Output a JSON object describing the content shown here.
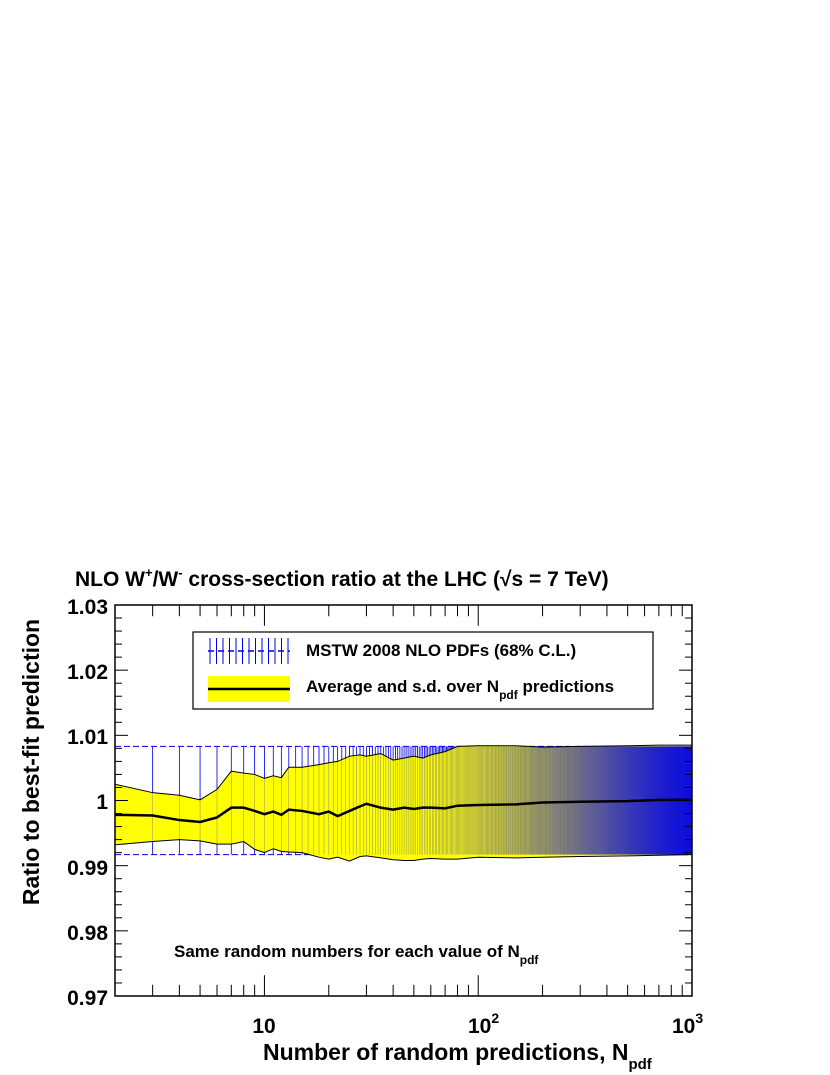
{
  "colors": {
    "band_fill": "#ffff00",
    "band_edge": "#000000",
    "error_bars": "#0000ee",
    "mean_line": "#000000",
    "frame": "#000000"
  },
  "labels": {
    "title_main": "NLO W",
    "title_sup1": "+",
    "title_mid": "/W",
    "title_sup2": "-",
    "title_rest": " cross-section ratio at the LHC (",
    "title_sqrt": "√",
    "title_s": "s",
    "title_end": " = 7 TeV)",
    "ylabel": "Ratio to best-fit prediction",
    "xlabel_main": "Number of random predictions, N",
    "xlabel_sub": "pdf",
    "annotation_main": "Same random numbers for each value of N",
    "annotation_sub": "pdf"
  },
  "legend": {
    "mstw_label": "MSTW 2008 NLO PDFs (68% C.L.)",
    "avg_label_main": "Average and s.d. over N",
    "avg_label_sub": "pdf",
    "avg_label_end": " predictions"
  },
  "ticks": {
    "y": [
      "0.97",
      "0.98",
      "0.99",
      "1",
      "1.01",
      "1.02",
      "1.03"
    ],
    "x_10": "10",
    "x_10e2_base": "10",
    "x_10e2_exp": "2",
    "x_10e3_base": "10",
    "x_10e3_exp": "3"
  },
  "chart_data": {
    "type": "area",
    "title": "NLO W+/W- cross-section ratio at the LHC (√s = 7 TeV)",
    "xlabel": "Number of random predictions, N_pdf",
    "ylabel": "Ratio to best-fit prediction",
    "xscale": "log",
    "xlim": [
      2,
      1000
    ],
    "ylim": [
      0.97,
      1.03
    ],
    "legend_position": "top-center",
    "mstw_band": {
      "central": 1.0,
      "lower": 0.9917,
      "upper": 1.0083,
      "x_step": 1
    },
    "series": [
      {
        "name": "Average and s.d. over N_pdf predictions",
        "x": [
          2,
          3,
          4,
          5,
          6,
          7,
          8,
          9,
          10,
          11,
          12,
          13,
          15,
          18,
          20,
          22,
          25,
          28,
          30,
          35,
          40,
          45,
          50,
          55,
          60,
          70,
          80,
          100,
          150,
          200,
          300,
          500,
          700,
          1000
        ],
        "mean": [
          0.9978,
          0.9977,
          0.997,
          0.9967,
          0.9974,
          0.9989,
          0.9989,
          0.9984,
          0.9979,
          0.9983,
          0.9978,
          0.9986,
          0.9984,
          0.9979,
          0.9983,
          0.9976,
          0.9984,
          0.9991,
          0.9995,
          0.9989,
          0.9986,
          0.9989,
          0.9987,
          0.9989,
          0.9989,
          0.9988,
          0.9992,
          0.9993,
          0.9994,
          0.9997,
          0.9998,
          0.9999,
          1.0001,
          1.0001
        ],
        "upper": [
          1.0025,
          1.0012,
          1.0008,
          1.0001,
          1.0017,
          1.0045,
          1.0042,
          1.004,
          1.0034,
          1.0038,
          1.0035,
          1.0051,
          1.0051,
          1.0055,
          1.0058,
          1.006,
          1.0068,
          1.007,
          1.0068,
          1.0072,
          1.0062,
          1.0065,
          1.0068,
          1.0065,
          1.007,
          1.0075,
          1.0083,
          1.0084,
          1.0084,
          1.0082,
          1.0083,
          1.0084,
          1.0085,
          1.0085
        ],
        "lower": [
          0.9932,
          0.9937,
          0.994,
          0.9938,
          0.9933,
          0.9933,
          0.9937,
          0.9925,
          0.992,
          0.9926,
          0.9922,
          0.9921,
          0.992,
          0.9913,
          0.991,
          0.9913,
          0.9907,
          0.9914,
          0.9915,
          0.9912,
          0.9909,
          0.9908,
          0.9908,
          0.991,
          0.9911,
          0.991,
          0.991,
          0.9913,
          0.9912,
          0.9913,
          0.9914,
          0.9915,
          0.9916,
          0.9917
        ]
      }
    ]
  }
}
